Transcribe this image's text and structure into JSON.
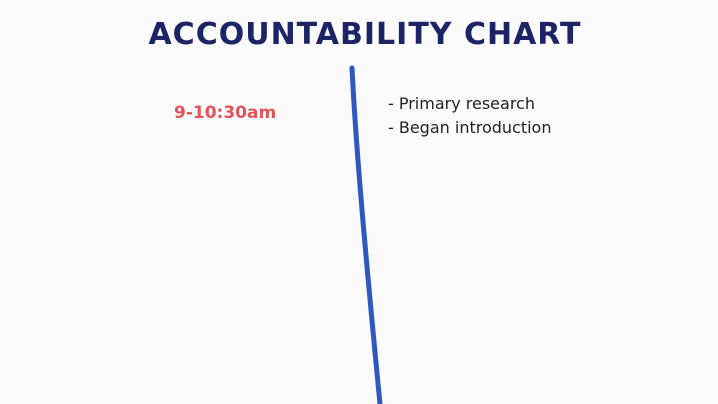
{
  "title": "ACCOUNTABILITY CHART",
  "entries": [
    {
      "time": "9-10:30am",
      "items": [
        "- Primary research",
        "- Began introduction"
      ]
    }
  ]
}
